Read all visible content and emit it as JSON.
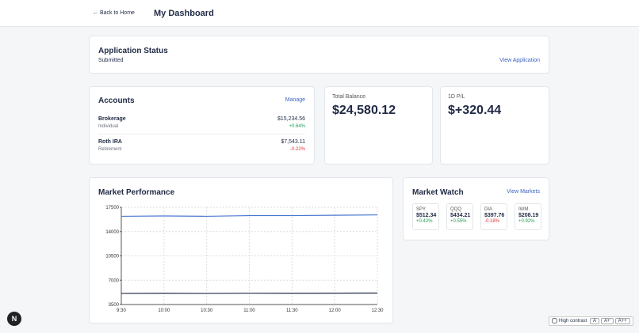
{
  "header": {
    "back": "Back to Home",
    "title": "My Dashboard"
  },
  "application": {
    "title": "Application Status",
    "status": "Submitted",
    "link": "View Application"
  },
  "accounts": {
    "title": "Accounts",
    "link": "Manage",
    "items": [
      {
        "name": "Brokerage",
        "kind": "Individual",
        "balance": "$15,234.56",
        "change": "+0.64%"
      },
      {
        "name": "Roth IRA",
        "kind": "Retirement",
        "balance": "$7,543.11",
        "change": "-0.22%"
      }
    ]
  },
  "total_balance": {
    "label": "Total Balance",
    "value": "$24,580.12"
  },
  "pl": {
    "label": "1D P/L",
    "value": "$+320.44"
  },
  "market_performance": {
    "type": "line",
    "title": "Market Performance",
    "categories": [
      "9:30",
      "10:00",
      "10:30",
      "11:00",
      "11:30",
      "12:00",
      "12:30"
    ],
    "series": [
      {
        "color": "#4a78d0",
        "values": [
          16200,
          16250,
          16200,
          16300,
          16300,
          16350,
          16400
        ]
      },
      {
        "color": "#1f2a44",
        "values": [
          5100,
          5120,
          5100,
          5130,
          5120,
          5140,
          5150
        ]
      }
    ],
    "ylim": [
      3500,
      17500
    ],
    "yticks": [
      3500,
      7000,
      10500,
      14000,
      17500
    ],
    "grid": true
  },
  "market_watch": {
    "title": "Market Watch",
    "link": "View Markets",
    "items": [
      {
        "symbol": "SPY",
        "price": "$512.34",
        "change": "+0.42%"
      },
      {
        "symbol": "QQQ",
        "price": "$434.21",
        "change": "+0.55%"
      },
      {
        "symbol": "DIA",
        "price": "$397.76",
        "change": "-0.18%"
      },
      {
        "symbol": "IWM",
        "price": "$208.19",
        "change": "+0.92%"
      }
    ]
  },
  "footer": {
    "badge": "N",
    "contrast": "High contrast",
    "sizes": [
      "A",
      "A+",
      "A++"
    ]
  }
}
